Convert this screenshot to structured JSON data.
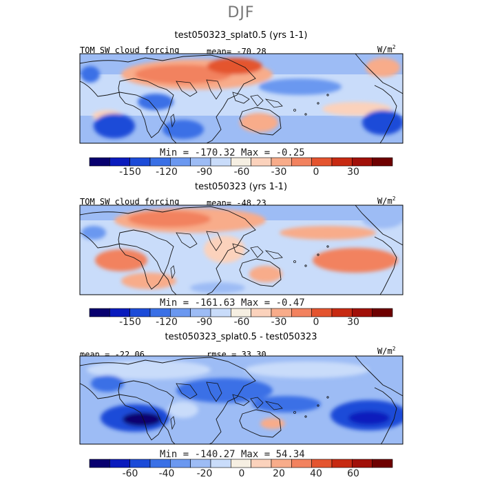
{
  "page": {
    "season": "DJF"
  },
  "panels": [
    {
      "title": "test050323_splat0.5 (yrs 1-1)",
      "left_label": "TOM SW cloud forcing",
      "center_label": "mean= -70.28",
      "unit": "W/m",
      "unit_sup": "2",
      "min_max": "Min = -170.32 Max =  -0.25"
    },
    {
      "title": "test050323 (yrs 1-1)",
      "left_label": "TOM SW cloud forcing",
      "center_label": "mean= -48.23",
      "unit": "W/m",
      "unit_sup": "2",
      "min_max": "Min = -161.63 Max =  -0.47"
    },
    {
      "title": "test050323_splat0.5 - test050323",
      "left_label": "mean = -22.06",
      "center_label": "rmse =  33.30",
      "unit": "W/m",
      "unit_sup": "2",
      "min_max": "Min = -140.27 Max =  54.34"
    }
  ],
  "colorbars": {
    "abs": {
      "colors": [
        "#08006f",
        "#0a1bbd",
        "#1c4bd8",
        "#3a70e6",
        "#6b98f0",
        "#9dbcf5",
        "#c9dcfa",
        "#f6efe2",
        "#fbd2bc",
        "#f8ac8a",
        "#f2825f",
        "#e4542f",
        "#c72a12",
        "#a11009",
        "#6e0000"
      ],
      "tick_labels": [
        "-150",
        "-120",
        "-90",
        "-60",
        "-30",
        "0",
        "30"
      ]
    },
    "diff": {
      "colors": [
        "#08006f",
        "#0a1bbd",
        "#1c4bd8",
        "#3a70e6",
        "#6b98f0",
        "#9dbcf5",
        "#c9dcfa",
        "#f6efe2",
        "#fbd2bc",
        "#f8ac8a",
        "#f2825f",
        "#e4542f",
        "#c72a12",
        "#a11009",
        "#6e0000"
      ],
      "tick_labels": [
        "-60",
        "-40",
        "-20",
        "0",
        "20",
        "40",
        "60"
      ]
    }
  }
}
